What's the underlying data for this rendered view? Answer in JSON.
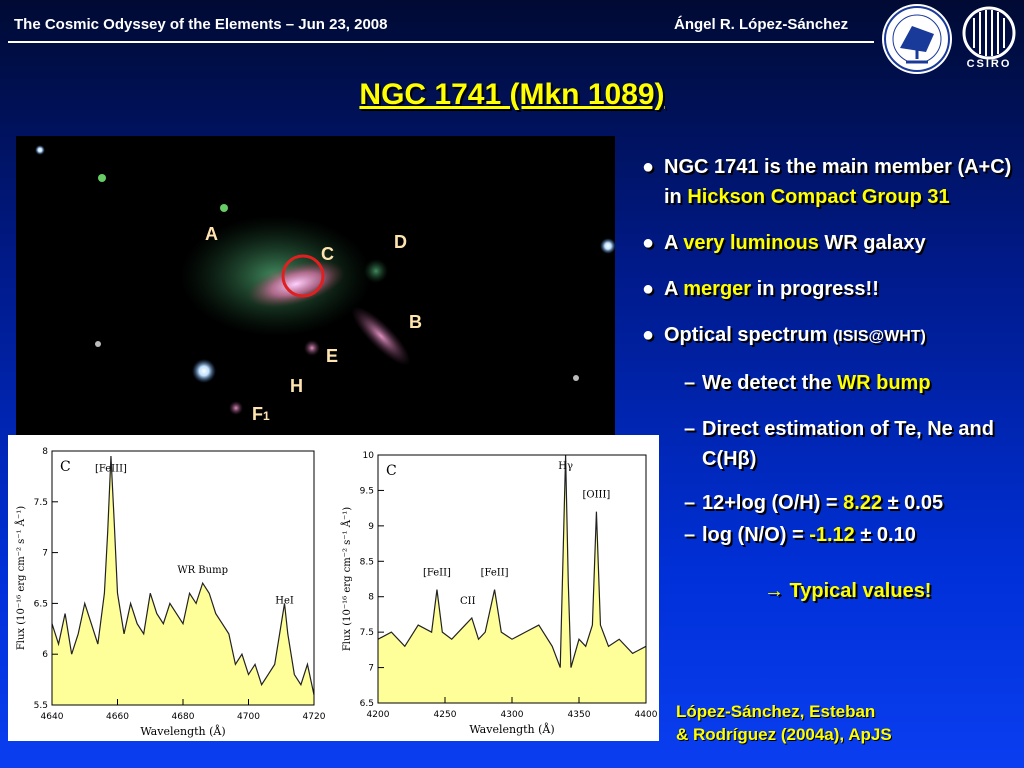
{
  "header": {
    "left_text": "The Cosmic Odyssey of the Elements – Jun 23, 2008",
    "right_text": "Ángel R. López-Sánchez",
    "logo_left": "ATNF telescope seal",
    "logo_right": "CSIRO",
    "logo_right_text": "CSIRO"
  },
  "slide": {
    "title": "NGC 1741 (Mkn 1089)"
  },
  "image": {
    "labels": {
      "a": "A",
      "c": "C",
      "d": "D",
      "b": "B",
      "e": "E",
      "h": "H",
      "f": "F",
      "f_sub": "1"
    }
  },
  "bullets": {
    "b1_part1": "NGC 1741 is the main member (A+C) in ",
    "b1_highlight": "Hickson Compact Group 31",
    "b2_prefix": "A ",
    "b2_highlight": "very luminous",
    "b2_suffix": " WR galaxy",
    "b3_prefix": "A ",
    "b3_highlight": "merger",
    "b3_suffix": " in progress!!",
    "b4_text": "Optical spectrum ",
    "b4_small": "(ISIS@WHT)",
    "s1_prefix": "We detect the ",
    "s1_highlight": "WR bump",
    "s2_text": "Direct estimation of Te, Ne and C(Hβ)",
    "s3_prefix": "12+log (O/H) = ",
    "s3_highlight": "8.22",
    "s3_suffix": " ± 0.05",
    "s4_prefix": "log (N/O) = ",
    "s4_highlight": "-1.12",
    "s4_suffix": " ± 0.10",
    "typical": "→ Typical values!"
  },
  "reference": {
    "line1": "López-Sánchez, Esteban",
    "line2": "& Rodríguez (2004a), ApJS"
  },
  "chart_data": [
    {
      "type": "line",
      "panel_label": "C",
      "xlabel": "Wavelength (Å)",
      "ylabel": "Flux (10⁻¹⁶ erg cm⁻² s⁻¹ Å⁻¹)",
      "xlim": [
        4640,
        4720
      ],
      "ylim": [
        5.5,
        8
      ],
      "xticks": [
        "4640",
        "4660",
        "4680",
        "4700",
        "4720"
      ],
      "yticks": [
        "5.5",
        "6",
        "6.5",
        "7",
        "7.5",
        "8"
      ],
      "annotations": [
        {
          "text": "[FeIII]",
          "x": 4658,
          "y": 7.8
        },
        {
          "text": "WR Bump",
          "x": 4686,
          "y": 6.8
        },
        {
          "text": "HeI",
          "x": 4711,
          "y": 6.5
        }
      ],
      "x": [
        4640,
        4642,
        4644,
        4646,
        4648,
        4650,
        4652,
        4654,
        4656,
        4657,
        4658,
        4659,
        4660,
        4662,
        4664,
        4666,
        4668,
        4670,
        4672,
        4674,
        4676,
        4678,
        4680,
        4682,
        4684,
        4686,
        4688,
        4690,
        4692,
        4694,
        4696,
        4698,
        4700,
        4702,
        4704,
        4706,
        4708,
        4710,
        4711,
        4712,
        4714,
        4716,
        4718,
        4720
      ],
      "y": [
        6.3,
        6.1,
        6.4,
        6.0,
        6.2,
        6.5,
        6.3,
        6.1,
        6.6,
        7.2,
        7.95,
        7.3,
        6.6,
        6.2,
        6.5,
        6.3,
        6.2,
        6.6,
        6.4,
        6.3,
        6.5,
        6.4,
        6.3,
        6.6,
        6.5,
        6.7,
        6.6,
        6.4,
        6.3,
        6.2,
        5.9,
        6.0,
        5.8,
        5.9,
        5.7,
        5.8,
        5.9,
        6.3,
        6.5,
        6.2,
        5.8,
        5.7,
        5.9,
        5.6
      ]
    },
    {
      "type": "line",
      "panel_label": "C",
      "xlabel": "Wavelength (Å)",
      "ylabel": "Flux (10⁻¹⁶ erg cm⁻² s⁻¹ Å⁻¹)",
      "xlim": [
        4200,
        4400
      ],
      "ylim": [
        6.5,
        10
      ],
      "xticks": [
        "4200",
        "4250",
        "4300",
        "4350",
        "4400"
      ],
      "yticks": [
        "6.5",
        "7",
        "7.5",
        "8",
        "8.5",
        "9",
        "9.5",
        "10"
      ],
      "annotations": [
        {
          "text": "[FeII]",
          "x": 4244,
          "y": 8.3
        },
        {
          "text": "[FeII]",
          "x": 4287,
          "y": 8.3
        },
        {
          "text": "CII",
          "x": 4267,
          "y": 7.9
        },
        {
          "text": "Hγ",
          "x": 4340,
          "y": 9.8
        },
        {
          "text": "[OIII]",
          "x": 4363,
          "y": 9.4
        }
      ],
      "x": [
        4200,
        4210,
        4220,
        4230,
        4240,
        4244,
        4248,
        4255,
        4265,
        4270,
        4275,
        4280,
        4287,
        4292,
        4300,
        4310,
        4320,
        4330,
        4336,
        4338,
        4340,
        4342,
        4344,
        4350,
        4355,
        4360,
        4363,
        4366,
        4372,
        4380,
        4390,
        4400
      ],
      "y": [
        7.4,
        7.5,
        7.3,
        7.6,
        7.5,
        8.1,
        7.5,
        7.4,
        7.6,
        7.7,
        7.4,
        7.5,
        8.1,
        7.5,
        7.4,
        7.5,
        7.6,
        7.3,
        7.0,
        8.5,
        10.0,
        8.2,
        7.0,
        7.4,
        7.3,
        7.6,
        9.2,
        7.6,
        7.3,
        7.4,
        7.2,
        7.3
      ]
    }
  ]
}
